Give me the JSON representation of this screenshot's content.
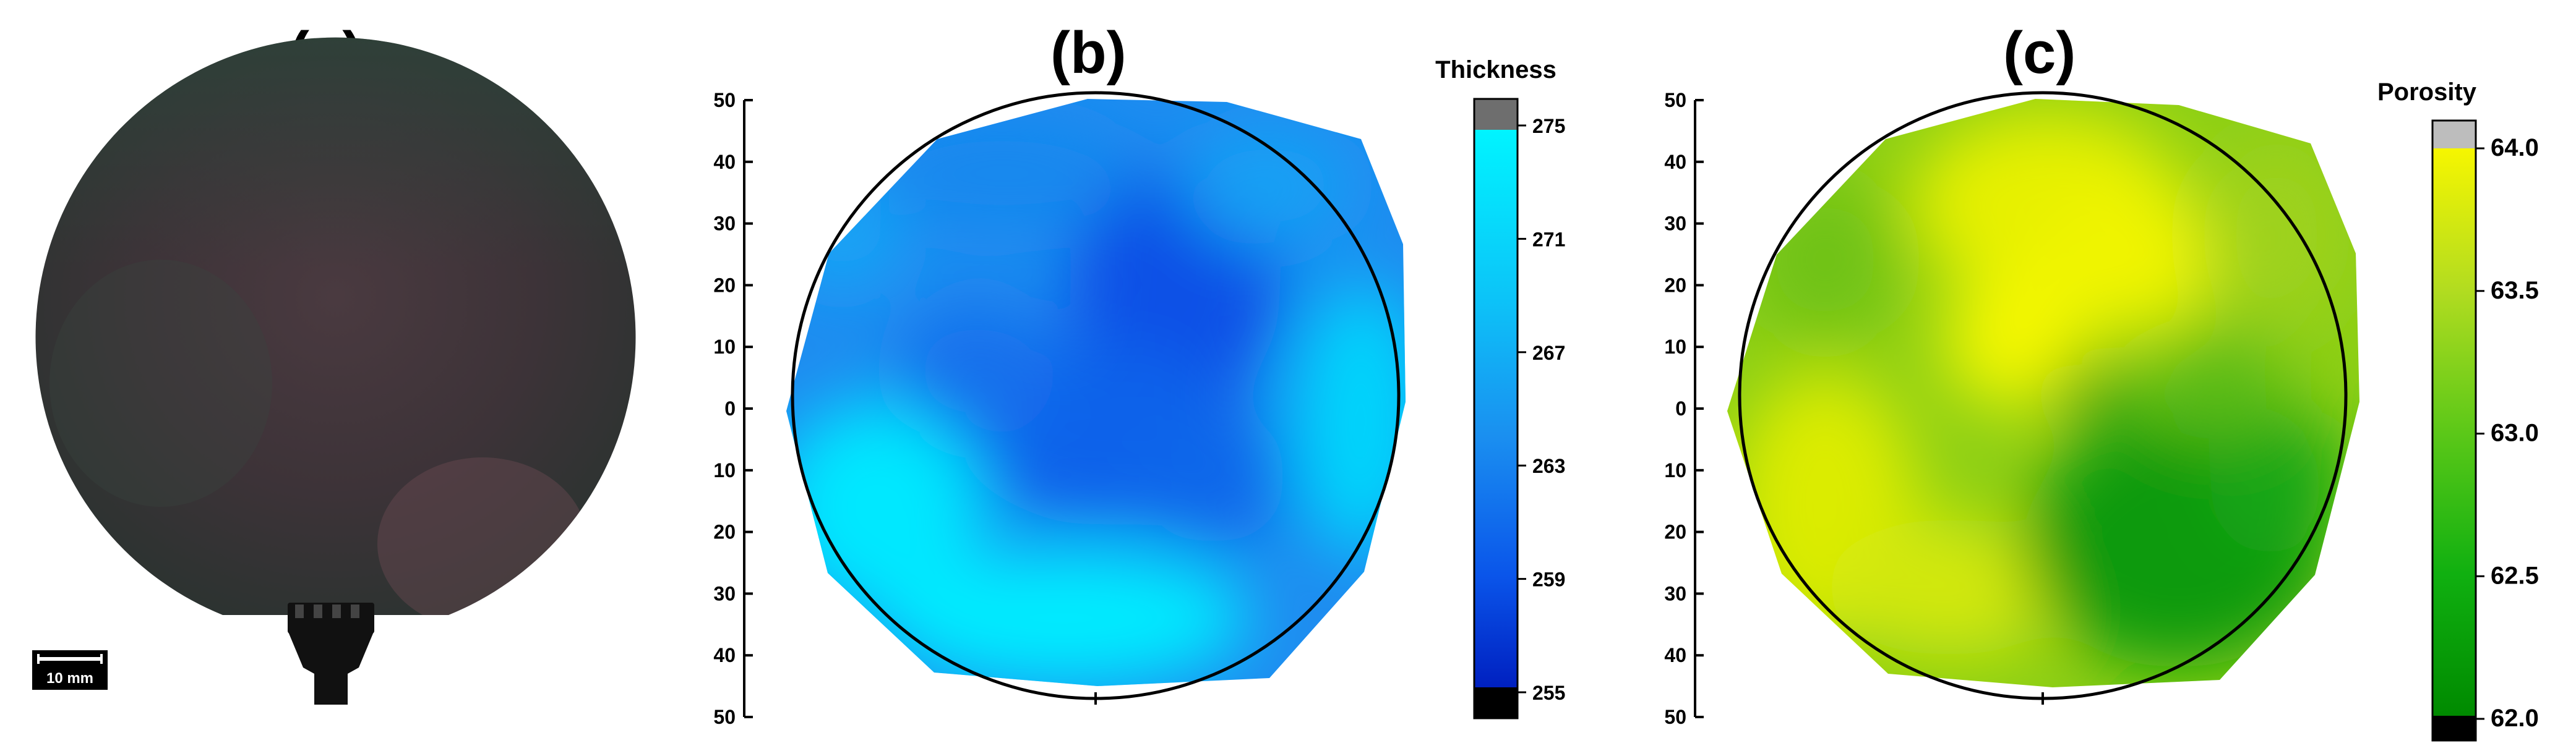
{
  "panels": {
    "a": {
      "label": "(a)",
      "scale_bar": "10 mm"
    },
    "b": {
      "label": "(b)",
      "colorbar_title": "Thickness",
      "colorbar_ticks": [
        "275",
        "271",
        "267",
        "263",
        "259",
        "255"
      ],
      "colors": {
        "low": "#0b3fe0",
        "mid": "#1f8ff2",
        "high": "#00f0ff",
        "over": "#6e6e6e",
        "under": "#000000"
      }
    },
    "c": {
      "label": "(c)",
      "colorbar_title": "Porosity",
      "colorbar_ticks": [
        "64.0",
        "63.5",
        "63.0",
        "62.5",
        "62.0"
      ],
      "colors": {
        "low": "#0a8a0a",
        "mid": "#6ec40e",
        "high": "#f4f700",
        "over": "#bdbdbd",
        "under": "#000000"
      }
    }
  },
  "y_axis_ticks": [
    "50",
    "40",
    "30",
    "20",
    "10",
    "0",
    "10",
    "20",
    "30",
    "40",
    "50"
  ]
}
